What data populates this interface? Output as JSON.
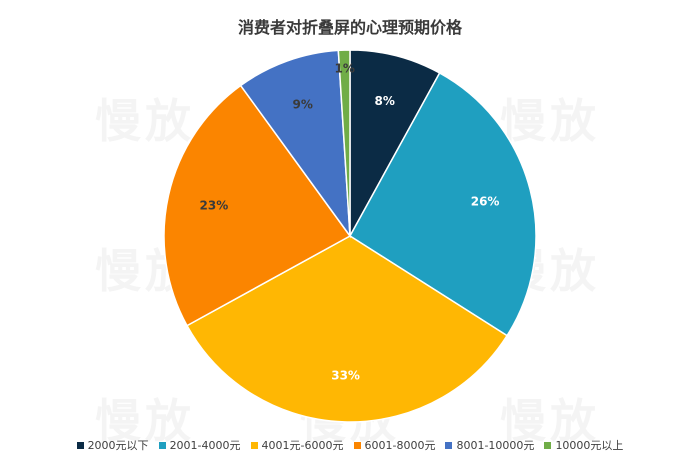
{
  "watermark": "慢放",
  "chart_data": {
    "type": "pie",
    "title": "消费者对折叠屏的心理预期价格",
    "categories": [
      "2000元以下",
      "2001-4000元",
      "4001元-6000元",
      "6001-8000元",
      "8001-10000元",
      "10000元以上"
    ],
    "values": [
      8,
      26,
      33,
      23,
      9,
      1
    ],
    "labels": [
      "8%",
      "26%",
      "33%",
      "23%",
      "9%",
      "1%"
    ],
    "colors": [
      "#0b2b45",
      "#1f9fc0",
      "#ffb703",
      "#fb8500",
      "#4472c4",
      "#70ad47"
    ],
    "label_colors": [
      "#ffffff",
      "#ffffff",
      "#ffffff",
      "#3a3a3a",
      "#3a3a3a",
      "#3a3a3a"
    ],
    "legend_position": "bottom",
    "start_angle_deg": 0,
    "direction": "clockwise"
  }
}
